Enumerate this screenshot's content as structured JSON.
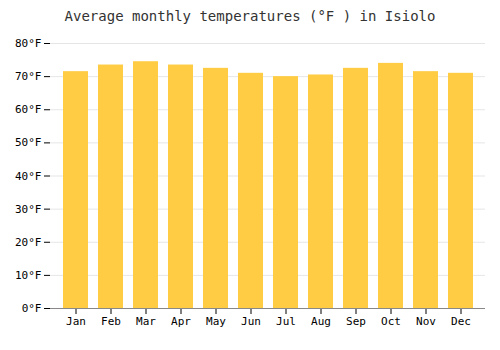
{
  "chart_data": {
    "type": "bar",
    "title": "Average monthly temperatures (°F ) in Isiolo",
    "categories": [
      "Jan",
      "Feb",
      "Mar",
      "Apr",
      "May",
      "Jun",
      "Jul",
      "Aug",
      "Sep",
      "Oct",
      "Nov",
      "Dec"
    ],
    "values": [
      71.5,
      73.5,
      74.5,
      73.5,
      72.5,
      71.0,
      70.0,
      70.5,
      72.5,
      74.0,
      71.5,
      71.0
    ],
    "color": "#FFCC44",
    "ylim": [
      0,
      80
    ],
    "yticks": [
      {
        "value": 0,
        "label": "0°F"
      },
      {
        "value": 10,
        "label": "10°F"
      },
      {
        "value": 20,
        "label": "20°F"
      },
      {
        "value": 30,
        "label": "30°F"
      },
      {
        "value": 40,
        "label": "40°F"
      },
      {
        "value": 50,
        "label": "50°F"
      },
      {
        "value": 60,
        "label": "60°F"
      },
      {
        "value": 70,
        "label": "70°F"
      },
      {
        "value": 80,
        "label": "80°F"
      }
    ],
    "grid": true
  }
}
